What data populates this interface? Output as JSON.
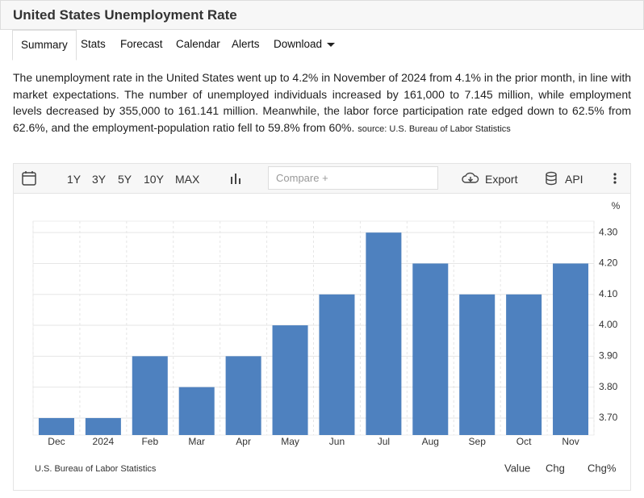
{
  "header": {
    "title": "United States Unemployment Rate"
  },
  "tabs": [
    "Summary",
    "Stats",
    "Forecast",
    "Calendar",
    "Alerts",
    "Download"
  ],
  "description": {
    "text": "The unemployment rate in the United States went up to 4.2% in November of 2024 from 4.1% in the prior month, in line with market expectations. The number of unemployed individuals increased by 161,000 to 7.145 million, while employment levels decreased by 355,000 to 161.141 million. Meanwhile, the labor force participation rate edged down to 62.5% from 62.6%, and the employment-population ratio fell to 59.8% from 60%.",
    "source": "source: U.S. Bureau of Labor Statistics"
  },
  "toolbar": {
    "ranges": [
      "1Y",
      "3Y",
      "5Y",
      "10Y",
      "MAX"
    ],
    "compare_placeholder": "Compare +",
    "export": "Export",
    "api": "API"
  },
  "chart_data": {
    "type": "bar",
    "ylabel": "%",
    "categories": [
      "Dec",
      "2024",
      "Feb",
      "Mar",
      "Apr",
      "May",
      "Jun",
      "Jul",
      "Aug",
      "Sep",
      "Oct",
      "Nov"
    ],
    "values": [
      3.7,
      3.7,
      3.9,
      3.8,
      3.9,
      4.0,
      4.1,
      4.3,
      4.2,
      4.1,
      4.1,
      4.2
    ],
    "color": "#4e81bf",
    "ylim": [
      3.645,
      4.337
    ],
    "yticks": [
      {
        "value": 3.7,
        "label": "3.70"
      },
      {
        "value": 3.8,
        "label": "3.80"
      },
      {
        "value": 3.9,
        "label": "3.90"
      },
      {
        "value": 4.0,
        "label": "4.00"
      },
      {
        "value": 4.1,
        "label": "4.10"
      },
      {
        "value": 4.2,
        "label": "4.20"
      },
      {
        "value": 4.3,
        "label": "4.30"
      }
    ],
    "grid": true
  },
  "footer": {
    "source": "U.S. Bureau of Labor Statistics",
    "views": [
      "Value",
      "Chg",
      "Chg%"
    ]
  }
}
